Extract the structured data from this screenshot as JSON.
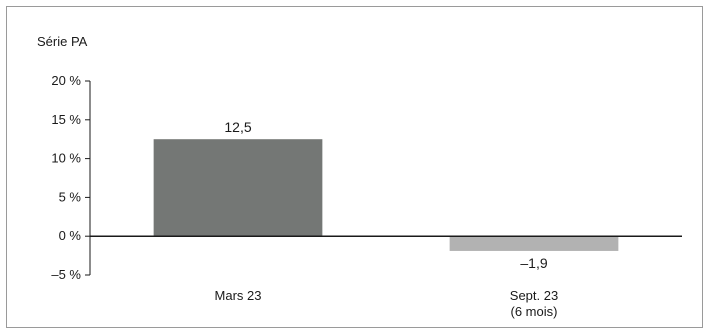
{
  "chart_data": {
    "type": "bar",
    "series_label": "Série PA",
    "categories": [
      [
        "Mars 23"
      ],
      [
        "Sept. 23",
        "(6 mois)"
      ]
    ],
    "values": [
      12.5,
      -1.9
    ],
    "value_labels": [
      "12,5",
      "–1,9"
    ],
    "bar_colors": [
      "#747775",
      "#b2b2b2"
    ],
    "ylim": [
      -5,
      20
    ],
    "yticks": [
      20,
      15,
      10,
      5,
      0,
      -5
    ],
    "ytick_labels": [
      "20 %",
      "15 %",
      "10 %",
      "5 %",
      "0 %",
      "–5 %"
    ],
    "grid": false
  }
}
